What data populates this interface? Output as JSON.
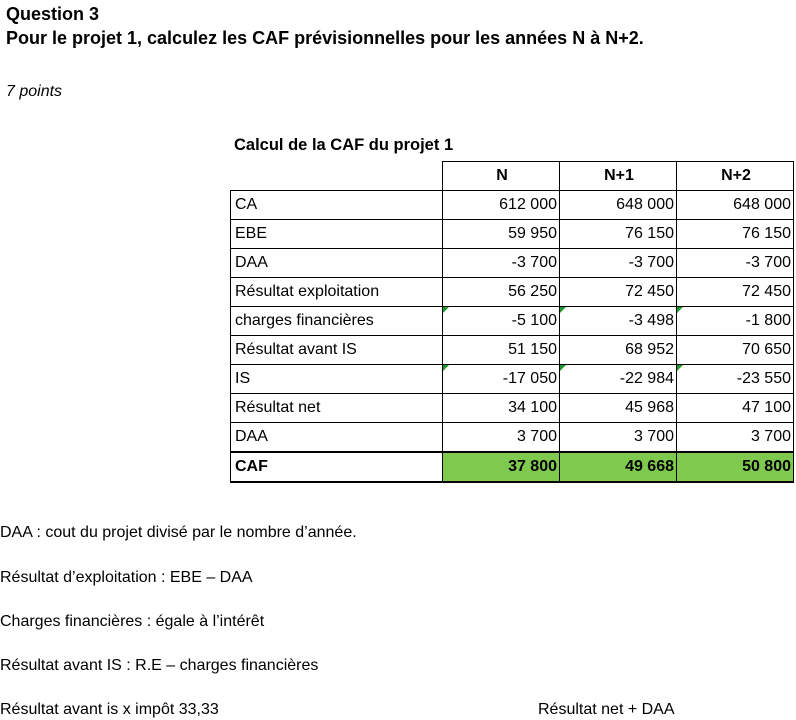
{
  "question": {
    "title": "Question 3",
    "text": "Pour le projet 1, calculez les CAF prévisionnelles pour les années N à N+2.",
    "points": "7 points"
  },
  "table": {
    "caption": "Calcul de la CAF du projet 1",
    "columns": [
      "N",
      "N+1",
      "N+2"
    ],
    "rows": [
      {
        "label": "CA",
        "values": [
          "612 000",
          "648 000",
          "648 000"
        ]
      },
      {
        "label": "EBE",
        "values": [
          "59 950",
          "76 150",
          "76 150"
        ]
      },
      {
        "label": "DAA",
        "values": [
          "-3 700",
          "-3 700",
          "-3 700"
        ]
      },
      {
        "label": "Résultat exploitation",
        "values": [
          "56 250",
          "72 450",
          "72 450"
        ]
      },
      {
        "label": "charges financières",
        "values": [
          "-5 100",
          "-3 498",
          "-1 800"
        ]
      },
      {
        "label": "Résultat avant IS",
        "values": [
          "51 150",
          "68 952",
          "70 650"
        ]
      },
      {
        "label": "IS",
        "values": [
          "-17 050",
          "-22 984",
          "-23 550"
        ]
      },
      {
        "label": "Résultat net",
        "values": [
          "34 100",
          "45 968",
          "47 100"
        ]
      },
      {
        "label": "DAA",
        "values": [
          "3 700",
          "3 700",
          "3 700"
        ]
      },
      {
        "label": "CAF",
        "values": [
          "37 800",
          "49 668",
          "50 800"
        ]
      }
    ],
    "highlight_color": "#7fc94f"
  },
  "notes": [
    "DAA : cout du projet divisé par le nombre d’année.",
    "Résultat d’exploitation : EBE – DAA",
    "Charges financières : égale à l’intérêt",
    "Résultat avant IS : R.E – charges financières",
    "Résultat avant is x impôt 33,33",
    "Résultat net + DAA"
  ]
}
